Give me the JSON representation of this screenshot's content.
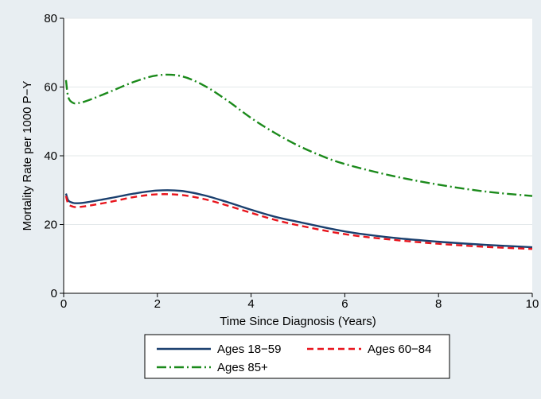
{
  "chart_data": {
    "type": "line",
    "xlabel": "Time Since Diagnosis (Years)",
    "ylabel": "Mortality Rate per 1000 P−Y",
    "xlim": [
      0,
      10
    ],
    "ylim": [
      0,
      80
    ],
    "x_ticks": [
      0,
      2,
      4,
      6,
      8,
      10
    ],
    "y_ticks": [
      0,
      20,
      40,
      60,
      80
    ],
    "grid": "horizontal",
    "legend_position": "bottom",
    "series": [
      {
        "name": "Ages 18−59",
        "color": "#1a3f6e",
        "dash": "solid",
        "x": [
          0.05,
          0.1,
          0.2,
          0.3,
          0.5,
          1.0,
          1.5,
          2.0,
          2.5,
          3.0,
          3.5,
          4.0,
          4.5,
          5.0,
          6.0,
          7.0,
          8.0,
          9.0,
          10.0
        ],
        "y": [
          29.0,
          27.0,
          26.3,
          26.2,
          26.5,
          27.7,
          29.0,
          29.9,
          29.8,
          28.5,
          26.5,
          24.3,
          22.3,
          20.8,
          18.0,
          16.2,
          15.0,
          14.1,
          13.4
        ]
      },
      {
        "name": "Ages 60−84",
        "color": "#e8141c",
        "dash": "dashed",
        "x": [
          0.05,
          0.1,
          0.2,
          0.3,
          0.5,
          1.0,
          1.5,
          2.0,
          2.5,
          3.0,
          3.5,
          4.0,
          4.5,
          5.0,
          6.0,
          7.0,
          8.0,
          9.0,
          10.0
        ],
        "y": [
          28.3,
          26.0,
          25.2,
          25.1,
          25.4,
          26.6,
          28.0,
          28.8,
          28.6,
          27.4,
          25.5,
          23.4,
          21.4,
          19.8,
          17.2,
          15.6,
          14.4,
          13.5,
          12.9
        ]
      },
      {
        "name": "Ages 85+",
        "color": "#1b8a1b",
        "dash": "dashdot",
        "x": [
          0.05,
          0.1,
          0.2,
          0.3,
          0.5,
          1.0,
          1.5,
          2.0,
          2.5,
          3.0,
          3.5,
          4.0,
          4.5,
          5.0,
          5.5,
          6.0,
          7.0,
          8.0,
          9.0,
          10.0
        ],
        "y": [
          62.0,
          57.0,
          55.4,
          55.3,
          56.0,
          58.7,
          61.5,
          63.4,
          63.2,
          60.4,
          56.0,
          51.0,
          46.7,
          43.0,
          40.0,
          37.6,
          34.2,
          31.6,
          29.6,
          28.3
        ]
      }
    ]
  }
}
